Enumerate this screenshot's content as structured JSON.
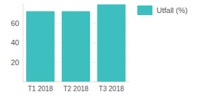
{
  "chart_data": {
    "type": "bar",
    "categories": [
      "T1 2018",
      "T2 2018",
      "T3 2018"
    ],
    "series": [
      {
        "name": "Utfall (%)",
        "color": "#3cbfbe",
        "values": [
          72,
          72,
          79
        ]
      }
    ],
    "ylim": [
      0,
      80
    ],
    "yticks": [
      20,
      40,
      60
    ],
    "grid": true,
    "legend": "right"
  }
}
